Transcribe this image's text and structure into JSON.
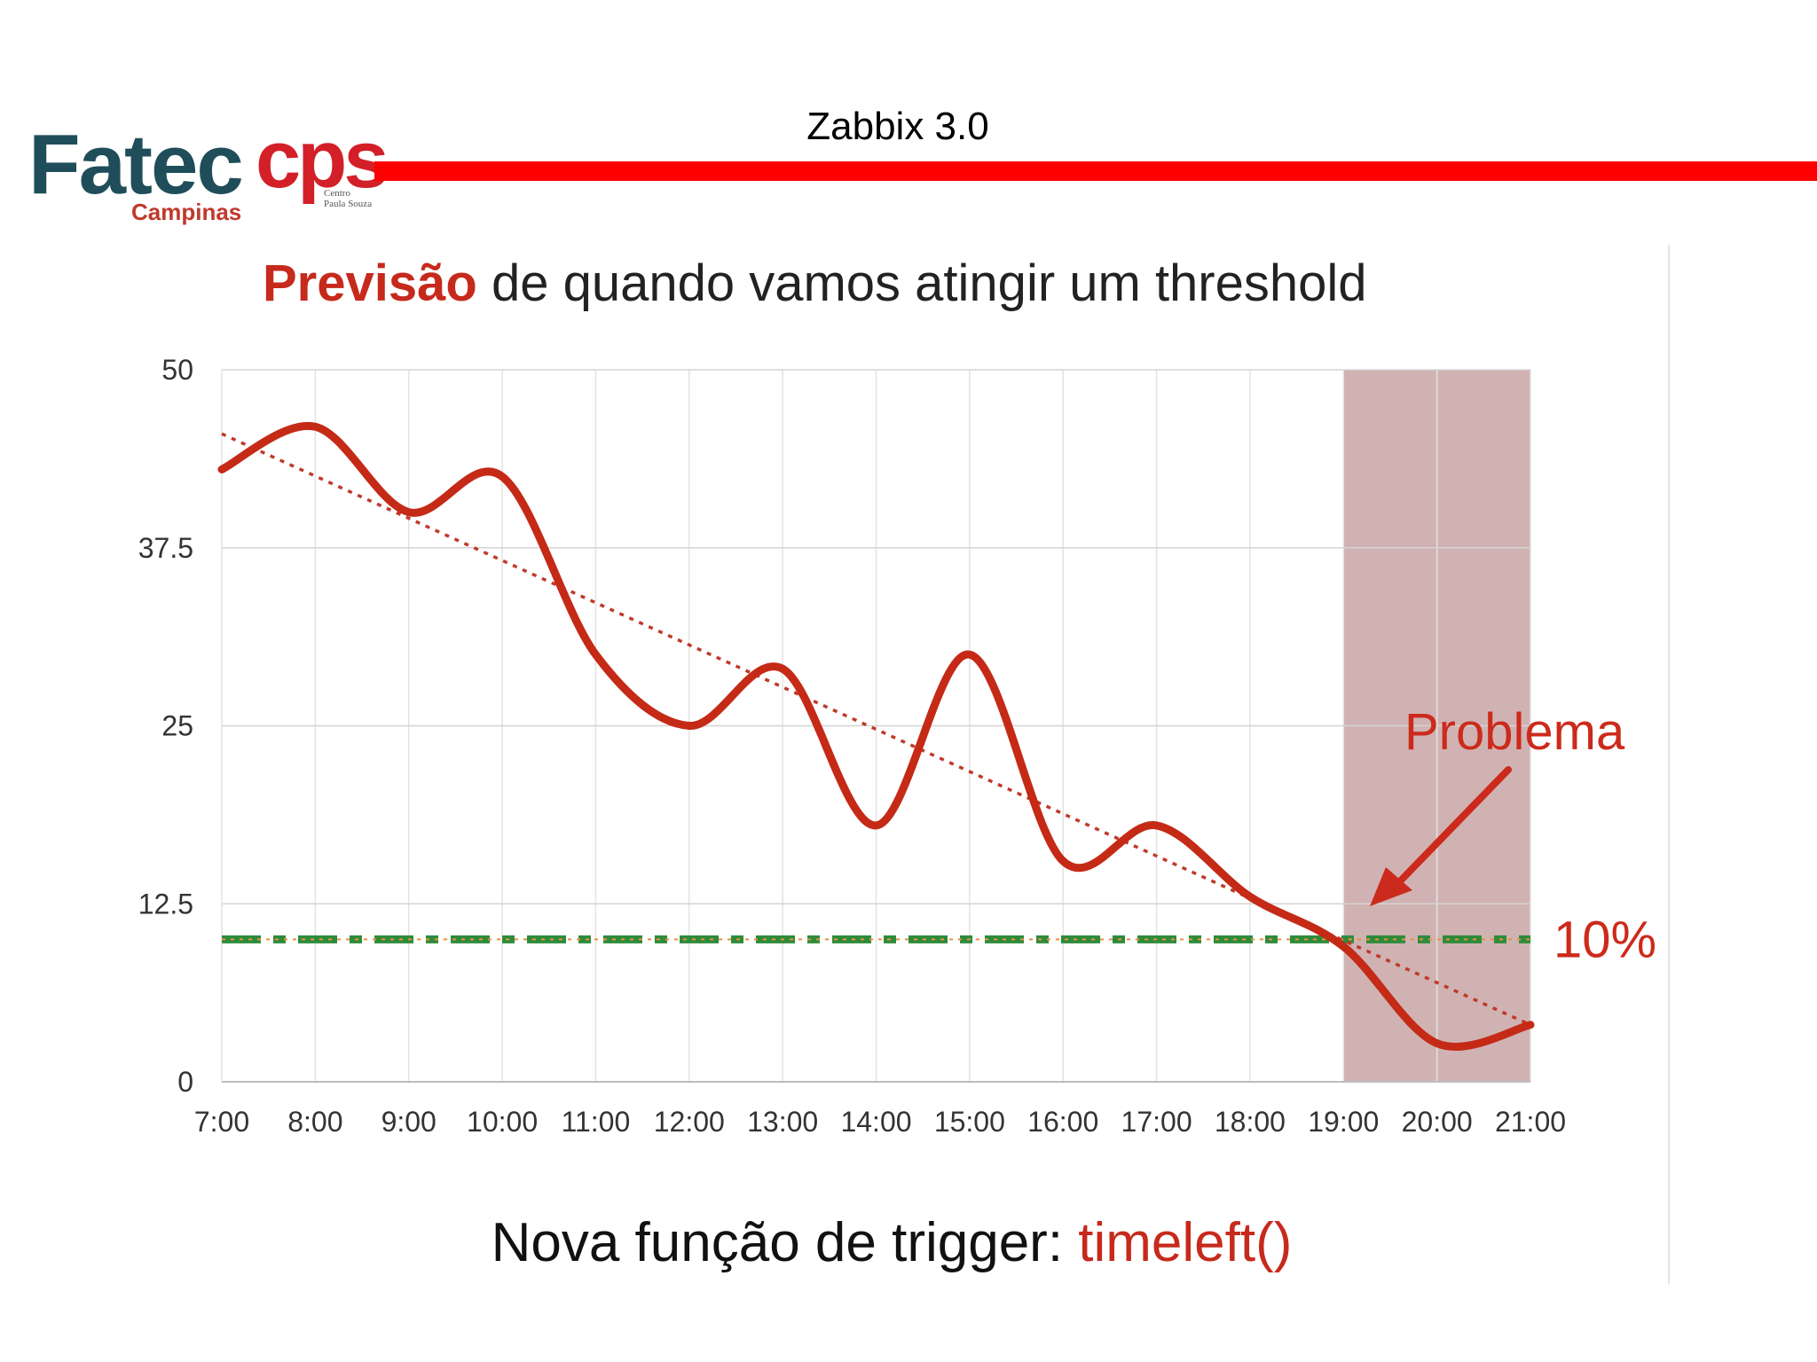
{
  "header": {
    "title": "Zabbix 3.0",
    "logo": {
      "name": "Fatec",
      "city": "Campinas",
      "brand": "cps",
      "sub_line1": "Centro",
      "sub_line2": "Paula Souza"
    }
  },
  "title": {
    "highlight": "Previsão",
    "rest": " de quando vamos atingir um threshold"
  },
  "footer": {
    "prefix": "Nova função de trigger: ",
    "function": "timeleft()"
  },
  "colors": {
    "accent_red": "#c62a1c",
    "header_bar": "#ff0000",
    "logo_teal": "#1f4e5a",
    "problem_band": "#c9a5a5",
    "threshold_green": "#2e8b3c",
    "grid": "#d4d4d4"
  },
  "chart_data": {
    "type": "line",
    "x": [
      "7:00",
      "8:00",
      "9:00",
      "10:00",
      "11:00",
      "12:00",
      "13:00",
      "14:00",
      "15:00",
      "16:00",
      "17:00",
      "18:00",
      "19:00",
      "20:00",
      "21:00"
    ],
    "ylim": [
      0,
      50
    ],
    "yticks": [
      "0",
      "12.5",
      "25",
      "37.5",
      "50"
    ],
    "grid": true,
    "series": [
      {
        "role": "measured",
        "points": [
          [
            0,
            43
          ],
          [
            1,
            46
          ],
          [
            2,
            40
          ],
          [
            3,
            42.5
          ],
          [
            4,
            30
          ],
          [
            5,
            25
          ],
          [
            6,
            29
          ],
          [
            7,
            18
          ],
          [
            8,
            30
          ],
          [
            9,
            15.5
          ],
          [
            10,
            18
          ],
          [
            11,
            13
          ],
          [
            12,
            9.5
          ],
          [
            13,
            2.7
          ],
          [
            14,
            4
          ]
        ]
      },
      {
        "role": "trend",
        "points": [
          [
            0,
            45.5
          ],
          [
            14,
            4
          ]
        ]
      }
    ],
    "threshold": {
      "value": 10,
      "label": "10%"
    },
    "problem_region": {
      "x_start": 12,
      "x_end": 14,
      "label": "Problema"
    }
  }
}
